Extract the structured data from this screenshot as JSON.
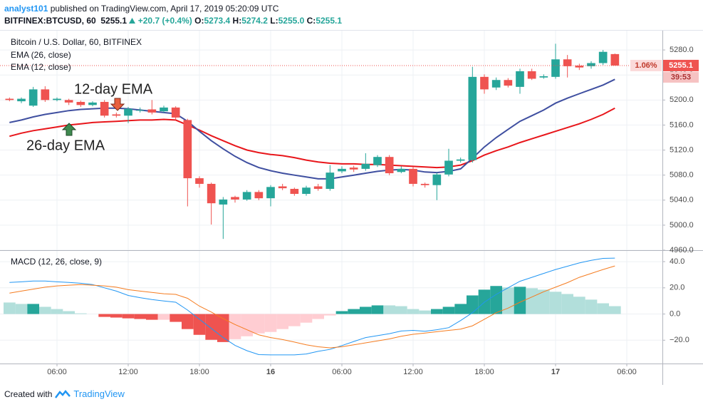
{
  "header": {
    "author": "analyst101",
    "published": "published on TradingView.com, April 17, 2019 05:20:09 UTC",
    "symbol": "BITFINEX:BTCUSD, 60",
    "last": "5255.1",
    "change": "+20.7 (+0.4%)",
    "ohlc": [
      {
        "label": "O:",
        "value": "5273.4"
      },
      {
        "label": "H:",
        "value": "5274.2"
      },
      {
        "label": "L:",
        "value": "5255.0"
      },
      {
        "label": "C:",
        "value": "5255.1"
      }
    ]
  },
  "footer": {
    "created": "Created with",
    "brand": "TradingView"
  },
  "chart_data": [
    {
      "type": "candlestick",
      "title": "Bitcoin / U.S. Dollar, 60, BITFINEX",
      "up_color": "#26a69a",
      "down_color": "#ef5350",
      "grid": true,
      "annotations": [
        "12-day EMA",
        "26-day EMA"
      ],
      "change_tag": "1.06%",
      "countdown": "39:53",
      "open": [
        5202,
        5198,
        5191,
        5217,
        5200,
        5200,
        5197,
        5192,
        5197,
        5177,
        5175,
        5183,
        5185,
        5182,
        5188,
        5168,
        5075,
        5066,
        5033,
        5045,
        5041,
        5053,
        5043,
        5062,
        5058,
        5050,
        5062,
        5058,
        5086,
        5092,
        5090,
        5096,
        5109,
        5085,
        5090,
        5066,
        5064,
        5081,
        5103,
        5104,
        5237,
        5220,
        5232,
        5221,
        5246,
        5236,
        5237,
        5265,
        5255,
        5254,
        5259,
        5273.4
      ],
      "high": [
        5204,
        5204,
        5221,
        5222,
        5204,
        5202,
        5199,
        5198,
        5200,
        5180,
        5189,
        5188,
        5200,
        5191,
        5190,
        5170,
        5078,
        5068,
        5045,
        5047,
        5056,
        5056,
        5064,
        5066,
        5060,
        5063,
        5066,
        5096,
        5094,
        5095,
        5115,
        5112,
        5112,
        5094,
        5093,
        5068,
        5084,
        5122,
        5108,
        5253,
        5241,
        5236,
        5235,
        5250,
        5250,
        5241,
        5290,
        5272,
        5258,
        5262,
        5280,
        5274.2
      ],
      "low": [
        5198,
        5195,
        5189,
        5197,
        5198,
        5192,
        5189,
        5190,
        5172,
        5172,
        5163,
        5180,
        5177,
        5180,
        5168,
        5030,
        5060,
        5001,
        4978,
        5036,
        5039,
        5040,
        5030,
        5056,
        5047,
        5047,
        5055,
        5055,
        5083,
        5085,
        5087,
        5093,
        5080,
        5083,
        5062,
        5060,
        5040,
        5078,
        5100,
        5100,
        5210,
        5216,
        5220,
        5210,
        5232,
        5234,
        5234,
        5236,
        5248,
        5250,
        5256,
        5255.0
      ],
      "close": [
        5200,
        5202,
        5217,
        5200,
        5202,
        5196,
        5192,
        5196,
        5175,
        5175,
        5186,
        5184,
        5180,
        5188,
        5172,
        5075,
        5066,
        5035,
        5041,
        5041,
        5053,
        5043,
        5061,
        5059,
        5050,
        5060,
        5058,
        5084,
        5090,
        5089,
        5098,
        5109,
        5083,
        5090,
        5066,
        5064,
        5081,
        5103,
        5105,
        5237,
        5217,
        5232,
        5223,
        5246,
        5234,
        5238,
        5265,
        5254,
        5252,
        5259,
        5277,
        5255.1
      ],
      "series": [
        {
          "name": "EMA (26, close)",
          "color": "#e8161b",
          "values": [
            5142,
            5147,
            5151,
            5154,
            5157,
            5160,
            5162,
            5164,
            5165,
            5166,
            5167,
            5168,
            5168,
            5169,
            5168,
            5160,
            5152,
            5143,
            5135,
            5127,
            5120,
            5116,
            5113,
            5111,
            5108,
            5104,
            5101,
            5099,
            5098,
            5098,
            5097,
            5097,
            5096,
            5095,
            5094,
            5093,
            5092,
            5093,
            5096,
            5103,
            5112,
            5119,
            5125,
            5132,
            5138,
            5144,
            5150,
            5156,
            5162,
            5169,
            5177,
            5187
          ]
        },
        {
          "name": "EMA (12, close)",
          "color": "#3f4fa0",
          "values": [
            5164,
            5168,
            5173,
            5177,
            5180,
            5183,
            5185,
            5186,
            5187,
            5187,
            5186,
            5184,
            5182,
            5180,
            5178,
            5166,
            5150,
            5135,
            5122,
            5110,
            5100,
            5092,
            5087,
            5083,
            5080,
            5077,
            5074,
            5074,
            5077,
            5080,
            5083,
            5086,
            5088,
            5089,
            5088,
            5085,
            5084,
            5086,
            5090,
            5107,
            5125,
            5140,
            5153,
            5166,
            5175,
            5184,
            5195,
            5203,
            5210,
            5217,
            5224,
            5233
          ]
        }
      ],
      "ylim": [
        4960,
        5312
      ],
      "yticks": [
        {
          "value": 4960,
          "label": "4960.0"
        },
        {
          "value": 5000,
          "label": "5000.0"
        },
        {
          "value": 5040,
          "label": "5040.0"
        },
        {
          "value": 5080,
          "label": "5080.0"
        },
        {
          "value": 5120,
          "label": "5120.0"
        },
        {
          "value": 5160,
          "label": "5160.0"
        },
        {
          "value": 5200,
          "label": "5200.0"
        },
        {
          "value": 5240,
          "label": "5240.0"
        },
        {
          "value": 5280,
          "label": "5280.0"
        }
      ]
    },
    {
      "type": "macd",
      "title": "MACD (12, 26, close, 9)",
      "grid": true,
      "histogram": {
        "values": [
          8.8,
          7.7,
          7.7,
          5.5,
          3.8,
          2.2,
          0.5,
          0,
          -2.2,
          -2.7,
          -3.3,
          -3.8,
          -4.4,
          -4.4,
          -6,
          -11.5,
          -15.9,
          -19.7,
          -21.4,
          -19.2,
          -17,
          -14.8,
          -13.7,
          -11.5,
          -9.3,
          -6.6,
          -3.8,
          -1.1,
          2.2,
          3.8,
          5.5,
          6.6,
          6.6,
          6,
          3.8,
          2.7,
          3.8,
          5.5,
          7.7,
          14.2,
          18.6,
          21.4,
          20.3,
          20.8,
          19.7,
          18.6,
          17,
          15.3,
          13.2,
          11,
          8.2,
          6
        ],
        "colors": [
          "#b2dfdb",
          "#b2dfdb",
          "#26a69a",
          "#b2dfdb",
          "#b2dfdb",
          "#b2dfdb",
          "#b2dfdb",
          "#b2dfdb",
          "#ef5350",
          "#ef5350",
          "#ef5350",
          "#ef5350",
          "#ef5350",
          "#ffcdd2",
          "#ef5350",
          "#ef5350",
          "#ef5350",
          "#ef5350",
          "#ef5350",
          "#ffcdd2",
          "#ffcdd2",
          "#ffcdd2",
          "#ffcdd2",
          "#ffcdd2",
          "#ffcdd2",
          "#ffcdd2",
          "#ffcdd2",
          "#ffcdd2",
          "#26a69a",
          "#26a69a",
          "#26a69a",
          "#26a69a",
          "#b2dfdb",
          "#b2dfdb",
          "#b2dfdb",
          "#b2dfdb",
          "#26a69a",
          "#26a69a",
          "#26a69a",
          "#26a69a",
          "#26a69a",
          "#26a69a",
          "#b2dfdb",
          "#26a69a",
          "#b2dfdb",
          "#b2dfdb",
          "#b2dfdb",
          "#b2dfdb",
          "#b2dfdb",
          "#b2dfdb",
          "#b2dfdb",
          "#b2dfdb"
        ]
      },
      "series": [
        {
          "color": "#2196f3",
          "values": [
            24.1,
            24.6,
            25.2,
            25.2,
            24.6,
            24.1,
            23.5,
            22.5,
            20,
            17.5,
            14.2,
            12.5,
            11,
            10,
            9,
            3,
            -4,
            -11,
            -18,
            -24,
            -28,
            -31,
            -31.2,
            -31.2,
            -31.2,
            -30.5,
            -28.5,
            -27,
            -24.1,
            -21,
            -18,
            -16.5,
            -15,
            -13,
            -12.5,
            -13.2,
            -12,
            -10.4,
            -5,
            1,
            9,
            15,
            20,
            25,
            28,
            31,
            34,
            36.5,
            39,
            41,
            42.5,
            42.7
          ]
        },
        {
          "color": "#f57c20",
          "values": [
            15.9,
            17.5,
            19,
            20.5,
            21.5,
            22,
            22.5,
            22,
            21.5,
            20.5,
            18.6,
            17.5,
            16.5,
            15.5,
            15,
            12,
            6,
            1.5,
            -3.5,
            -8,
            -12,
            -15.9,
            -18,
            -19.5,
            -21.4,
            -23.5,
            -25,
            -25.8,
            -25,
            -23.5,
            -22,
            -20.5,
            -19,
            -17,
            -15.5,
            -14.5,
            -13.5,
            -12.5,
            -11.5,
            -9,
            -4,
            1,
            4.5,
            9,
            13,
            17,
            20.5,
            24,
            28,
            31,
            34,
            36.7
          ]
        }
      ],
      "ylim": [
        -37.8,
        48.2
      ],
      "yticks": [
        {
          "value": -20,
          "label": "−20.0"
        },
        {
          "value": 0,
          "label": "0.0"
        },
        {
          "value": 20,
          "label": "20.0"
        },
        {
          "value": 40,
          "label": "40.0"
        }
      ],
      "xlim": [
        -0.8,
        55
      ],
      "xticks": [
        {
          "value": 4,
          "label": "06:00"
        },
        {
          "value": 10,
          "label": "12:00"
        },
        {
          "value": 16,
          "label": "18:00"
        },
        {
          "value": 22,
          "label": "16"
        },
        {
          "value": 28,
          "label": "06:00"
        },
        {
          "value": 34,
          "label": "12:00"
        },
        {
          "value": 40,
          "label": "18:00"
        },
        {
          "value": 46,
          "label": "17"
        },
        {
          "value": 52,
          "label": "06:00"
        }
      ]
    }
  ]
}
